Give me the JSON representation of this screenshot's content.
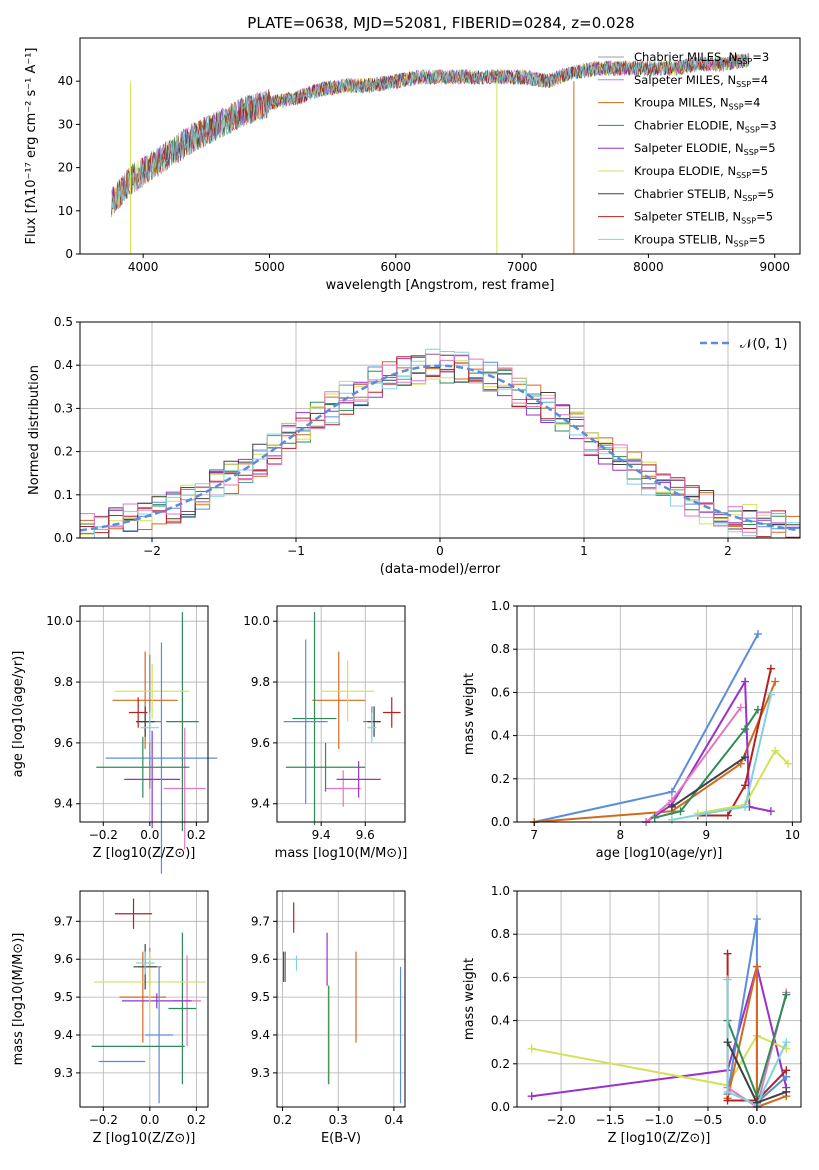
{
  "figure_title": "PLATE=0638, MJD=52081, FIBERID=0284, z=0.028",
  "colors": {
    "c0": "#7f7f7f",
    "c1": "#e377c2",
    "c2": "#b8860b",
    "c3": "#2e8b57",
    "c4": "#9932cc",
    "c5": "#d4e157",
    "c6": "#404040",
    "c7": "#b22222",
    "c8": "#5fd3d3",
    "gauss": "#5b8dd9"
  },
  "legend": [
    {
      "label": "Chabrier MILES, N",
      "sub": "SSP",
      "tail": "=3",
      "color": "#9aa0a6"
    },
    {
      "label": "Salpeter MILES, N",
      "sub": "SSP",
      "tail": "=4",
      "color": "#e377c2"
    },
    {
      "label": "Kroupa MILES, N",
      "sub": "SSP",
      "tail": "=4",
      "color": "#d2691e"
    },
    {
      "label": "Chabrier ELODIE, N",
      "sub": "SSP",
      "tail": "=3",
      "color": "#2e8b57"
    },
    {
      "label": "Salpeter ELODIE, N",
      "sub": "SSP",
      "tail": "=5",
      "color": "#9932cc"
    },
    {
      "label": "Kroupa ELODIE, N",
      "sub": "SSP",
      "tail": "=5",
      "color": "#d4e157"
    },
    {
      "label": "Chabrier STELIB, N",
      "sub": "SSP",
      "tail": "=5",
      "color": "#404040"
    },
    {
      "label": "Salpeter STELIB, N",
      "sub": "SSP",
      "tail": "=5",
      "color": "#b22222"
    },
    {
      "label": "Kroupa STELIB, N",
      "sub": "SSP",
      "tail": "=5",
      "color": "#7fd3e0"
    }
  ],
  "chart_data": [
    {
      "type": "line",
      "id": "spectrum",
      "xlabel": "wavelength [Angstrom, rest frame]",
      "ylabel": "Flux [fλ10⁻¹⁷ erg cm⁻² s⁻¹ A⁻¹]",
      "xlim": [
        3500,
        9200
      ],
      "ylim": [
        0,
        50
      ],
      "xticks": [
        4000,
        5000,
        6000,
        7000,
        8000,
        9000
      ],
      "yticks": [
        0,
        10,
        20,
        30,
        40
      ],
      "x": [
        3750,
        3900,
        4000,
        4200,
        4400,
        4600,
        4800,
        5000,
        5200,
        5400,
        5600,
        5800,
        6000,
        6200,
        6400,
        6600,
        6800,
        7000,
        7200,
        7400,
        7600,
        7800,
        8000,
        8200,
        8400,
        8600,
        8800
      ],
      "y": [
        12,
        17,
        19,
        23,
        27,
        30,
        33,
        35,
        36,
        38,
        39,
        39,
        40,
        41,
        41,
        41,
        41,
        41,
        40,
        42,
        43,
        43,
        43,
        43,
        44,
        44,
        45
      ]
    },
    {
      "type": "bar",
      "id": "residuals",
      "xlabel": "(data-model)/error",
      "ylabel": "Normed distribution",
      "xlim": [
        -2.5,
        2.5
      ],
      "ylim": [
        0,
        0.5
      ],
      "xticks": [
        -2,
        -1,
        0,
        1,
        2
      ],
      "yticks": [
        0.0,
        0.1,
        0.2,
        0.3,
        0.4,
        0.5
      ],
      "legend_label": "𝒩(0, 1)",
      "bin_width": 0.1,
      "bin_start": -2.5
    },
    {
      "type": "scatter",
      "id": "age-vs-Z",
      "xlabel": "Z [log10(Z/Z⊙)]",
      "ylabel": "age  [log10(age/yr)]",
      "xlim": [
        -0.3,
        0.25
      ],
      "ylim": [
        9.34,
        10.05
      ],
      "xticks": [
        -0.2,
        0.0,
        0.2
      ],
      "yticks": [
        9.4,
        9.6,
        9.8,
        10.0
      ]
    },
    {
      "type": "scatter",
      "id": "age-vs-mass",
      "xlabel": "mass [log10(M/M⊙)]",
      "ylabel": "",
      "xlim": [
        9.2,
        9.78
      ],
      "ylim": [
        9.34,
        10.05
      ],
      "xticks": [
        9.4,
        9.6
      ],
      "yticks": [
        9.4,
        9.6,
        9.8,
        10.0
      ]
    },
    {
      "type": "line",
      "id": "weight-vs-age",
      "xlabel": "age  [log10(age/yr)]",
      "ylabel": "mass weight",
      "xlim": [
        6.8,
        10.1
      ],
      "ylim": [
        0,
        1.0
      ],
      "xticks": [
        7,
        8,
        9,
        10
      ],
      "yticks": [
        0.0,
        0.2,
        0.4,
        0.6,
        0.8,
        1.0
      ]
    },
    {
      "type": "scatter",
      "id": "mass-vs-Z",
      "xlabel": "Z [log10(Z/Z⊙)]",
      "ylabel": "mass [log10(M/M⊙)]",
      "xlim": [
        -0.3,
        0.25
      ],
      "ylim": [
        9.21,
        9.78
      ],
      "xticks": [
        -0.2,
        0.0,
        0.2
      ],
      "yticks": [
        9.3,
        9.4,
        9.5,
        9.6,
        9.7
      ]
    },
    {
      "type": "scatter",
      "id": "mass-vs-ebv",
      "xlabel": "E(B-V)",
      "ylabel": "",
      "xlim": [
        0.19,
        0.42
      ],
      "ylim": [
        9.21,
        9.78
      ],
      "xticks": [
        0.2,
        0.3,
        0.4
      ],
      "yticks": [
        9.3,
        9.4,
        9.5,
        9.6,
        9.7
      ]
    },
    {
      "type": "line",
      "id": "weight-vs-Z",
      "xlabel": "Z [log10(Z/Z⊙)]",
      "ylabel": "mass weight",
      "xlim": [
        -2.45,
        0.45
      ],
      "ylim": [
        0,
        1.0
      ],
      "xticks": [
        -2.0,
        -1.5,
        -1.0,
        -0.5,
        0.0
      ],
      "yticks": [
        0.0,
        0.2,
        0.4,
        0.6,
        0.8,
        1.0
      ]
    }
  ],
  "errorbars_ageZ": [
    {
      "x": 0.0,
      "y": 9.67,
      "xe": 0.05,
      "ye": 0.22,
      "c": "#7f7f7f"
    },
    {
      "x": 0.15,
      "y": 9.45,
      "xe": 0.09,
      "ye": 0.2,
      "c": "#e377c2"
    },
    {
      "x": -0.02,
      "y": 9.74,
      "xe": 0.14,
      "ye": 0.16,
      "c": "#d2691e"
    },
    {
      "x": 0.14,
      "y": 9.67,
      "xe": 0.07,
      "ye": 0.36,
      "c": "#2e8b57"
    },
    {
      "x": 0.01,
      "y": 9.48,
      "xe": 0.12,
      "ye": 0.16,
      "c": "#9932cc"
    },
    {
      "x": 0.01,
      "y": 9.77,
      "xe": 0.16,
      "ye": 0.09,
      "c": "#d4e157"
    },
    {
      "x": -0.02,
      "y": 9.67,
      "xe": 0.04,
      "ye": 0.05,
      "c": "#404040"
    },
    {
      "x": -0.05,
      "y": 9.7,
      "xe": 0.04,
      "ye": 0.05,
      "c": "#b22222"
    },
    {
      "x": 0.0,
      "y": 9.65,
      "xe": 0.04,
      "ye": 0.05,
      "c": "#7fd3e0"
    },
    {
      "x": 0.05,
      "y": 9.55,
      "xe": 0.24,
      "ye": 0.38,
      "c": "#5b8dd9"
    },
    {
      "x": -0.03,
      "y": 9.52,
      "xe": 0.2,
      "ye": 0.1,
      "c": "#2e8b57"
    }
  ],
  "errorbars_ageMass": [
    {
      "x": 9.63,
      "y": 9.67,
      "xe": 0.04,
      "ye": 0.05,
      "c": "#7f7f7f"
    },
    {
      "x": 9.5,
      "y": 9.45,
      "xe": 0.08,
      "ye": 0.06,
      "c": "#e377c2"
    },
    {
      "x": 9.48,
      "y": 9.74,
      "xe": 0.12,
      "ye": 0.16,
      "c": "#d2691e"
    },
    {
      "x": 9.37,
      "y": 9.68,
      "xe": 0.1,
      "ye": 0.35,
      "c": "#2e8b57"
    },
    {
      "x": 9.57,
      "y": 9.48,
      "xe": 0.1,
      "ye": 0.06,
      "c": "#9932cc"
    },
    {
      "x": 9.52,
      "y": 9.77,
      "xe": 0.12,
      "ye": 0.1,
      "c": "#d4e157"
    },
    {
      "x": 9.64,
      "y": 9.67,
      "xe": 0.03,
      "ye": 0.05,
      "c": "#404040"
    },
    {
      "x": 9.72,
      "y": 9.7,
      "xe": 0.04,
      "ye": 0.05,
      "c": "#b22222"
    },
    {
      "x": 9.63,
      "y": 9.65,
      "xe": 0.02,
      "ye": 0.05,
      "c": "#7fd3e0"
    },
    {
      "x": 9.33,
      "y": 9.67,
      "xe": 0.1,
      "ye": 0.27,
      "c": "#5b8dd9"
    },
    {
      "x": 9.42,
      "y": 9.52,
      "xe": 0.18,
      "ye": 0.08,
      "c": "#2e8b57"
    }
  ],
  "errorbars_massZ": [
    {
      "x": 0.0,
      "y": 9.58,
      "xe": 0.05,
      "ye": 0.05,
      "c": "#7f7f7f"
    },
    {
      "x": 0.16,
      "y": 9.49,
      "xe": 0.06,
      "ye": 0.12,
      "c": "#e377c2"
    },
    {
      "x": -0.03,
      "y": 9.5,
      "xe": 0.1,
      "ye": 0.12,
      "c": "#d2691e"
    },
    {
      "x": 0.14,
      "y": 9.47,
      "xe": 0.06,
      "ye": 0.2,
      "c": "#2e8b57"
    },
    {
      "x": 0.03,
      "y": 9.49,
      "xe": 0.15,
      "ye": 0.02,
      "c": "#9932cc"
    },
    {
      "x": 0.0,
      "y": 9.54,
      "xe": 0.24,
      "ye": 0.08,
      "c": "#d4e157"
    },
    {
      "x": -0.02,
      "y": 9.58,
      "xe": 0.05,
      "ye": 0.06,
      "c": "#404040"
    },
    {
      "x": -0.07,
      "y": 9.72,
      "xe": 0.08,
      "ye": 0.04,
      "c": "#b22222"
    },
    {
      "x": -0.02,
      "y": 9.59,
      "xe": 0.04,
      "ye": 0.03,
      "c": "#7fd3e0"
    },
    {
      "x": 0.04,
      "y": 9.4,
      "xe": 0.06,
      "ye": 0.18,
      "c": "#5b8dd9"
    },
    {
      "x": -0.12,
      "y": 9.33,
      "xe": 0.1,
      "ye": 0.0,
      "c": "#5b8dd9"
    },
    {
      "x": -0.05,
      "y": 9.37,
      "xe": 0.2,
      "ye": 0.0,
      "c": "#2e8b57"
    }
  ],
  "errorbars_massEbv": [
    {
      "x": 0.202,
      "y": 9.58,
      "ye": 0.04,
      "c": "#404040"
    },
    {
      "x": 0.205,
      "y": 9.58,
      "ye": 0.04,
      "c": "#7f7f7f"
    },
    {
      "x": 0.22,
      "y": 9.71,
      "ye": 0.04,
      "c": "#b22222"
    },
    {
      "x": 0.225,
      "y": 9.59,
      "ye": 0.02,
      "c": "#7fd3e0"
    },
    {
      "x": 0.28,
      "y": 9.6,
      "ye": 0.07,
      "c": "#9932cc"
    },
    {
      "x": 0.282,
      "y": 9.4,
      "ye": 0.13,
      "c": "#d4e157"
    },
    {
      "x": 0.283,
      "y": 9.4,
      "ye": 0.13,
      "c": "#2e8b57"
    },
    {
      "x": 0.332,
      "y": 9.5,
      "ye": 0.12,
      "c": "#d2691e"
    },
    {
      "x": 0.412,
      "y": 9.4,
      "ye": 0.18,
      "c": "#5b8dd9"
    }
  ],
  "weights_age": [
    {
      "c": "#5b8dd9",
      "pts": [
        [
          7.0,
          0.0
        ],
        [
          8.6,
          0.14
        ],
        [
          9.6,
          0.87
        ]
      ]
    },
    {
      "c": "#d2691e",
      "pts": [
        [
          7.0,
          0.0
        ],
        [
          8.6,
          0.05
        ],
        [
          9.4,
          0.27
        ],
        [
          9.8,
          0.65
        ]
      ]
    },
    {
      "c": "#9932cc",
      "pts": [
        [
          8.3,
          0.0
        ],
        [
          8.6,
          0.08
        ],
        [
          9.45,
          0.65
        ],
        [
          9.5,
          0.07
        ],
        [
          9.75,
          0.05
        ]
      ]
    },
    {
      "c": "#e377c2",
      "pts": [
        [
          8.3,
          0.0
        ],
        [
          8.6,
          0.1
        ],
        [
          9.4,
          0.53
        ]
      ]
    },
    {
      "c": "#2e8b57",
      "pts": [
        [
          8.4,
          0.02
        ],
        [
          8.7,
          0.05
        ],
        [
          9.45,
          0.43
        ],
        [
          9.6,
          0.52
        ]
      ]
    },
    {
      "c": "#b22222",
      "pts": [
        [
          8.9,
          0.03
        ],
        [
          9.25,
          0.03
        ],
        [
          9.45,
          0.17
        ],
        [
          9.75,
          0.71
        ]
      ]
    },
    {
      "c": "#d4e157",
      "pts": [
        [
          8.9,
          0.04
        ],
        [
          9.45,
          0.08
        ],
        [
          9.8,
          0.33
        ],
        [
          9.95,
          0.27
        ]
      ]
    },
    {
      "c": "#7fd3e0",
      "pts": [
        [
          8.6,
          0.01
        ],
        [
          9.0,
          0.04
        ],
        [
          9.45,
          0.07
        ],
        [
          9.75,
          0.59
        ]
      ]
    },
    {
      "c": "#404040",
      "pts": [
        [
          8.6,
          0.07
        ],
        [
          9.45,
          0.3
        ]
      ]
    }
  ],
  "weights_Z": [
    {
      "c": "#9932cc",
      "pts": [
        [
          -2.3,
          0.05
        ],
        [
          -0.3,
          0.17
        ],
        [
          0.0,
          0.65
        ],
        [
          0.3,
          0.09
        ]
      ]
    },
    {
      "c": "#d4e157",
      "pts": [
        [
          -2.3,
          0.27
        ],
        [
          -0.3,
          0.1
        ],
        [
          0.0,
          0.33
        ],
        [
          0.3,
          0.27
        ]
      ]
    },
    {
      "c": "#5b8dd9",
      "pts": [
        [
          -0.3,
          0.06
        ],
        [
          0.0,
          0.87
        ],
        [
          0.0,
          0.02
        ],
        [
          0.3,
          0.14
        ]
      ]
    },
    {
      "c": "#d2691e",
      "pts": [
        [
          -0.3,
          0.04
        ],
        [
          0.0,
          0.65
        ],
        [
          0.0,
          0.0
        ],
        [
          0.3,
          0.05
        ]
      ]
    },
    {
      "c": "#e377c2",
      "pts": [
        [
          -0.3,
          0.09
        ],
        [
          0.0,
          0.0
        ],
        [
          0.3,
          0.53
        ]
      ]
    },
    {
      "c": "#2e8b57",
      "pts": [
        [
          -0.3,
          0.4
        ],
        [
          0.0,
          0.05
        ],
        [
          0.3,
          0.52
        ]
      ]
    },
    {
      "c": "#b22222",
      "pts": [
        [
          -0.3,
          0.71
        ],
        [
          -0.3,
          0.03
        ],
        [
          0.0,
          0.03
        ],
        [
          0.3,
          0.17
        ]
      ]
    },
    {
      "c": "#7fd3e0",
      "pts": [
        [
          -0.3,
          0.59
        ],
        [
          -0.3,
          0.07
        ],
        [
          0.0,
          0.01
        ],
        [
          0.3,
          0.3
        ]
      ]
    },
    {
      "c": "#404040",
      "pts": [
        [
          -0.3,
          0.3
        ],
        [
          0.0,
          0.02
        ],
        [
          0.3,
          0.07
        ]
      ]
    }
  ]
}
